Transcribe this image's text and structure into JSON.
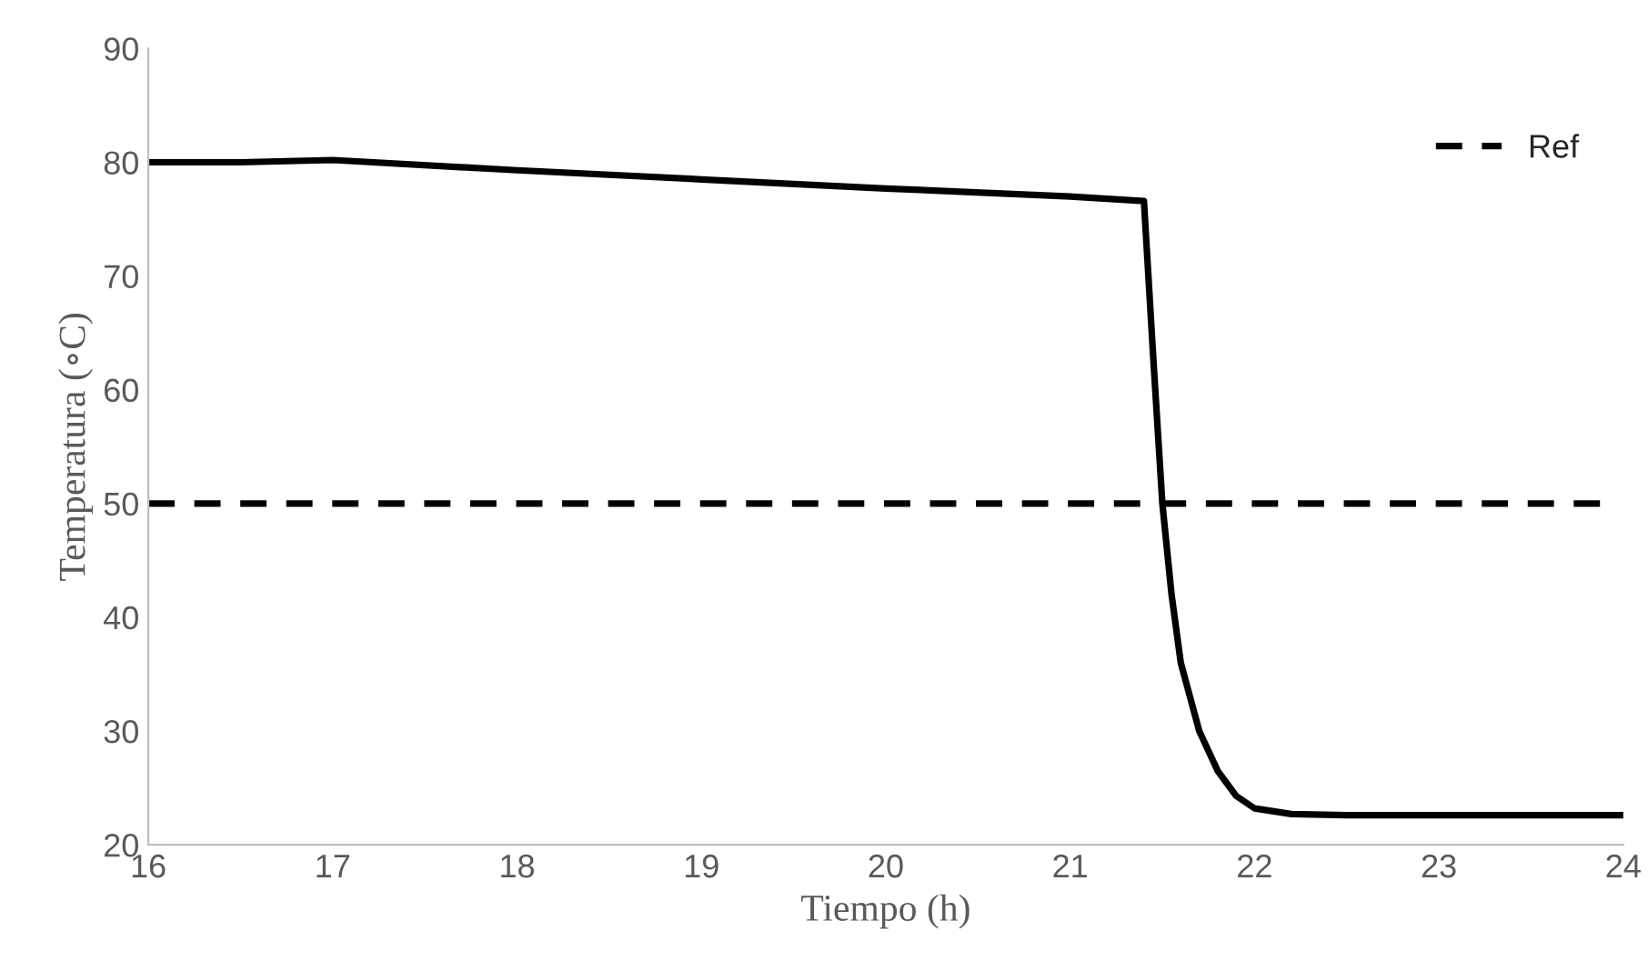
{
  "chart_data": {
    "type": "line",
    "xlabel": "Tiempo (h)",
    "ylabel": "Temperatura (∘C)",
    "xlim": [
      16,
      24
    ],
    "xticks": [
      16,
      17,
      18,
      19,
      20,
      21,
      22,
      23,
      24
    ],
    "ylim": [
      20,
      90
    ],
    "yticks": [
      20,
      30,
      40,
      50,
      60,
      70,
      80,
      90
    ],
    "grid": false,
    "legend": "top right",
    "series": [
      {
        "color": "#000000",
        "line_style": "solid",
        "x": [
          16,
          16.5,
          17,
          18,
          19,
          20,
          21,
          21.4,
          21.45,
          21.5,
          21.55,
          21.6,
          21.7,
          21.8,
          21.9,
          22,
          22.2,
          22.5,
          24
        ],
        "values": [
          80,
          80,
          80.2,
          79.3,
          78.5,
          77.7,
          77,
          76.6,
          63,
          50,
          42,
          36,
          30,
          26.5,
          24.3,
          23.2,
          22.7,
          22.6,
          22.6
        ]
      },
      {
        "name": "Ref",
        "color": "#000000",
        "line_style": "dashed",
        "x": [
          16,
          23.9
        ],
        "values": [
          50,
          50
        ]
      }
    ]
  }
}
